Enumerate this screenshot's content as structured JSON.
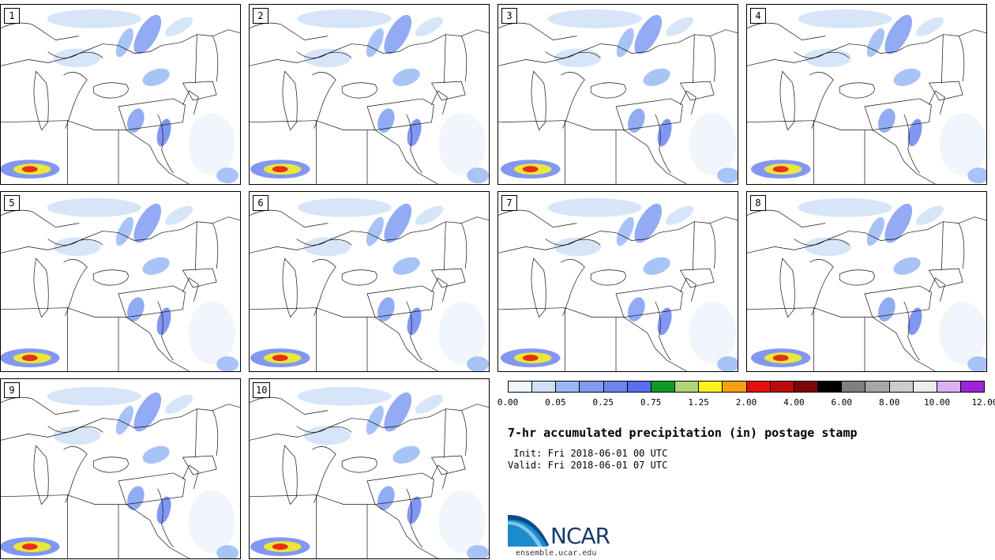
{
  "panels": [
    {
      "label": "1"
    },
    {
      "label": "2"
    },
    {
      "label": "3"
    },
    {
      "label": "4"
    },
    {
      "label": "5"
    },
    {
      "label": "6"
    },
    {
      "label": "7"
    },
    {
      "label": "8"
    },
    {
      "label": "9"
    },
    {
      "label": "10"
    }
  ],
  "colorbar": {
    "colors": [
      "#eef5fb",
      "#cfe1f7",
      "#99b9f5",
      "#7f9cf2",
      "#6c85ee",
      "#5b6ef0",
      "#0c9b26",
      "#b3d27a",
      "#fdf31c",
      "#f7a10e",
      "#e60f0f",
      "#bd0a0a",
      "#7c0606",
      "#000000",
      "#7f7f7f",
      "#a6a6a6",
      "#cccccc",
      "#ededed",
      "#dcb0f0",
      "#9d25d9"
    ],
    "tick_labels": [
      "0.00",
      "0.05",
      "0.25",
      "0.75",
      "1.25",
      "2.00",
      "4.00",
      "6.00",
      "8.00",
      "10.00",
      "12.00"
    ]
  },
  "title": "7-hr accumulated precipitation (in) postage stamp",
  "init_line": " Init: Fri 2018-06-01 00 UTC",
  "valid_line": "Valid: Fri 2018-06-01 07 UTC",
  "logo": {
    "text": "NCAR",
    "url": "ensemble.ucar.edu"
  }
}
